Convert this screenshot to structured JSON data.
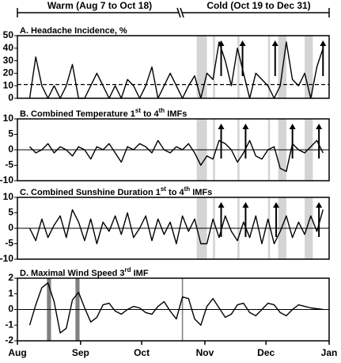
{
  "header": [
    "Warm (Aug 7 to Oct 18)",
    "Cold (Oct 19 to Dec 31)"
  ],
  "chart_data": [
    {
      "type": "line",
      "title": [
        "A. Headache Incidence, %"
      ],
      "color": "#000000",
      "band_color": "#d4d4d4",
      "x": [
        6,
        9,
        12,
        15,
        18,
        21,
        24,
        27,
        30,
        33,
        36,
        39,
        42,
        45,
        48,
        51,
        54,
        57,
        60,
        63,
        66,
        69,
        72,
        75,
        78,
        81,
        84,
        87,
        90,
        93,
        96,
        99,
        102,
        105,
        108,
        111,
        114,
        117,
        120,
        123,
        126,
        129,
        132,
        135,
        138,
        141,
        144,
        147,
        150
      ],
      "values": [
        0,
        33,
        10,
        0,
        10,
        0,
        10,
        27,
        0,
        0,
        10,
        20,
        10,
        0,
        10,
        0,
        15,
        10,
        0,
        10,
        25,
        0,
        10,
        20,
        10,
        0,
        10,
        18,
        0,
        20,
        15,
        45,
        30,
        10,
        40,
        20,
        0,
        20,
        15,
        10,
        0,
        10,
        45,
        15,
        10,
        20,
        0,
        25,
        40
      ],
      "reference_line": 11,
      "bands": [
        [
          88,
          93
        ],
        [
          96,
          97
        ],
        [
          108,
          109
        ],
        [
          123,
          124
        ],
        [
          128,
          132
        ],
        [
          141,
          145
        ]
      ],
      "arrows": [
        100,
        110.5,
        126.5,
        150
      ],
      "xlim": [
        0,
        153
      ],
      "ylim": [
        0,
        50
      ],
      "yticks": [
        0,
        10,
        20,
        30,
        40,
        50
      ]
    },
    {
      "type": "line",
      "title": [
        "B. Combined Temperature 1",
        "st",
        " to 4",
        "th",
        " IMFs"
      ],
      "color": "#000000",
      "band_color": "#d4d4d4",
      "x": [
        6,
        9,
        12,
        15,
        18,
        21,
        24,
        27,
        30,
        33,
        36,
        39,
        42,
        45,
        48,
        51,
        54,
        57,
        60,
        63,
        66,
        69,
        72,
        75,
        78,
        81,
        84,
        87,
        90,
        93,
        96,
        99,
        102,
        105,
        108,
        111,
        114,
        117,
        120,
        123,
        126,
        129,
        132,
        135,
        138,
        141,
        144,
        147,
        150
      ],
      "values": [
        1,
        -1,
        0,
        2,
        -1,
        1,
        0,
        -2,
        1,
        0,
        -3,
        1,
        0,
        2,
        -1,
        -4,
        1,
        0,
        2,
        1,
        -1,
        3,
        0,
        -1,
        1,
        0,
        2,
        -1,
        -5,
        -2,
        -3,
        3,
        2,
        0,
        -4,
        -1,
        3,
        -2,
        -3,
        0,
        1,
        -6,
        -7,
        2,
        0,
        -1,
        1,
        3,
        -1
      ],
      "bands": [
        [
          88,
          93
        ],
        [
          96,
          97
        ],
        [
          108,
          109
        ],
        [
          123,
          124
        ],
        [
          128,
          132
        ],
        [
          141,
          145
        ]
      ],
      "arrows": [
        100,
        112,
        135,
        148
      ],
      "xlim": [
        0,
        153
      ],
      "ylim": [
        -10,
        10
      ],
      "yticks": [
        -10,
        -5,
        0,
        5,
        10
      ]
    },
    {
      "type": "line",
      "title": [
        "C. Combined Sunshine Duration 1",
        "st",
        " to 4",
        "th",
        " IMFs"
      ],
      "color": "#000000",
      "band_color": "#d4d4d4",
      "x": [
        6,
        9,
        12,
        15,
        18,
        21,
        24,
        27,
        30,
        33,
        36,
        39,
        42,
        45,
        48,
        51,
        54,
        57,
        60,
        63,
        66,
        69,
        72,
        75,
        78,
        81,
        84,
        87,
        90,
        93,
        96,
        99,
        102,
        105,
        108,
        111,
        114,
        117,
        120,
        123,
        126,
        129,
        132,
        135,
        138,
        141,
        144,
        147,
        150
      ],
      "values": [
        0,
        -4,
        3,
        -3,
        1,
        4,
        -3,
        6,
        2,
        -4,
        3,
        -5,
        2,
        -1,
        4,
        -2,
        5,
        -3,
        0,
        4,
        -4,
        3,
        -2,
        2,
        -5,
        4,
        -1,
        3,
        -5,
        -5,
        3,
        -3,
        4,
        -1,
        -4,
        2,
        -3,
        4,
        -5,
        3,
        -5,
        -1,
        4,
        -3,
        2,
        -2,
        4,
        -1,
        6
      ],
      "bands": [
        [
          88,
          93
        ],
        [
          96,
          97
        ],
        [
          108,
          109
        ],
        [
          123,
          124
        ],
        [
          128,
          132
        ],
        [
          141,
          145
        ]
      ],
      "arrows": [
        100,
        112,
        127,
        148
      ],
      "xlim": [
        0,
        153
      ],
      "ylim": [
        -10,
        10
      ],
      "yticks": [
        -10,
        -5,
        0,
        5,
        10
      ]
    },
    {
      "type": "line",
      "title": [
        "D. Maximal Wind Speed 3",
        "rd",
        " IMF"
      ],
      "color": "#000000",
      "band_color": "#808080",
      "x": [
        6,
        9,
        12,
        15,
        18,
        21,
        24,
        27,
        30,
        33,
        36,
        39,
        42,
        45,
        48,
        51,
        54,
        57,
        60,
        63,
        66,
        69,
        72,
        75,
        78,
        81,
        84,
        87,
        90,
        93,
        96,
        99,
        102,
        105,
        108,
        111,
        114,
        117,
        120,
        123,
        126,
        129,
        132,
        135,
        138,
        141,
        144,
        147,
        150
      ],
      "values": [
        -1,
        0.3,
        1.4,
        1.7,
        0.5,
        -1.5,
        -1.2,
        0.6,
        1.1,
        0.1,
        -0.8,
        -0.5,
        0.3,
        0.4,
        -0.1,
        -0.3,
        0,
        0.2,
        0.1,
        -0.2,
        -0.3,
        0.2,
        0.5,
        -0.1,
        -0.6,
        0.8,
        0.7,
        -0.6,
        -1,
        0.2,
        0.7,
        0.1,
        -0.5,
        -0.3,
        0.3,
        0.4,
        -0.2,
        -0.4,
        0,
        0.4,
        0.3,
        -0.2,
        -0.4,
        0,
        0.3,
        0.2,
        0.1,
        0.05,
        0
      ],
      "bands": [
        [
          14.5,
          16.5
        ],
        [
          28.5,
          30.5
        ],
        [
          80.7,
          81.3
        ]
      ],
      "xlim": [
        0,
        153
      ],
      "ylim": [
        -2,
        2
      ],
      "yticks": [
        -2,
        -1,
        0,
        1,
        2
      ],
      "xticks": [
        {
          "value": 0,
          "label": "Aug"
        },
        {
          "value": 31,
          "label": "Sep"
        },
        {
          "value": 61,
          "label": "Oct"
        },
        {
          "value": 92,
          "label": "Nov"
        },
        {
          "value": 122,
          "label": "Dec"
        },
        {
          "value": 153,
          "label": "Jan"
        }
      ]
    }
  ]
}
